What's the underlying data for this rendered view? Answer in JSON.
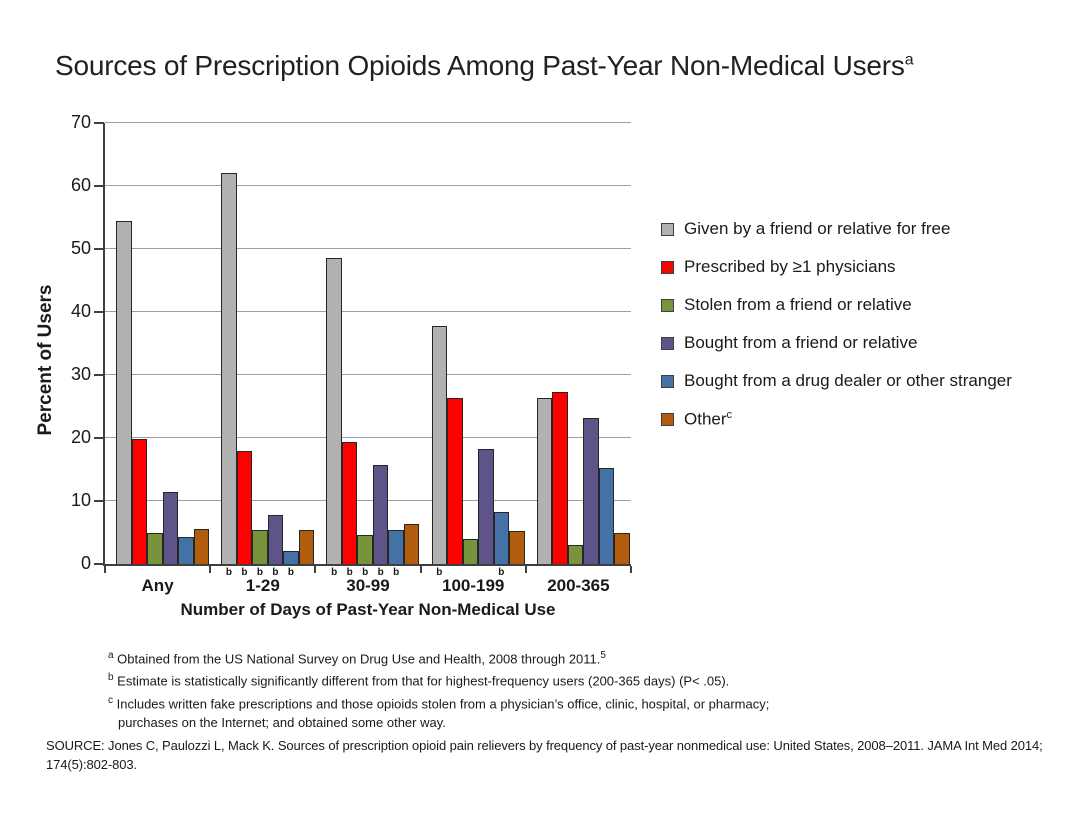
{
  "chart_data": {
    "type": "bar",
    "title": "Sources of Prescription Opioids Among Past-Year Non-Medical Users",
    "title_superscript": "a",
    "xlabel": "Number of Days of Past-Year Non-Medical Use",
    "ylabel": "Percent of Users",
    "ylim": [
      0,
      70
    ],
    "yticks": [
      0,
      10,
      20,
      30,
      40,
      50,
      60,
      70
    ],
    "grid": true,
    "legend_position": "right-of-plot",
    "categories": [
      "Any",
      "1-29",
      "30-99",
      "100-199",
      "200-365"
    ],
    "series": [
      {
        "name": "Given by a friend or relative for free",
        "slug": "given-free",
        "color": "#B1B1B1",
        "values": [
          54.5,
          62.0,
          48.5,
          37.8,
          26.3
        ]
      },
      {
        "name": "Prescribed by ≥1 physicians",
        "slug": "prescribed",
        "color": "#FE0000",
        "values": [
          19.8,
          18.0,
          19.4,
          26.4,
          27.3
        ]
      },
      {
        "name": "Stolen from a friend or relative",
        "slug": "stolen-friend",
        "color": "#77933C",
        "values": [
          4.9,
          5.4,
          4.6,
          4.0,
          3.0
        ]
      },
      {
        "name": "Bought from a friend or relative",
        "slug": "bought-friend",
        "color": "#5F5488",
        "values": [
          11.4,
          7.8,
          15.7,
          18.3,
          23.2
        ]
      },
      {
        "name": "Bought from a drug dealer or other stranger",
        "slug": "bought-dealer",
        "color": "#4472A6",
        "values": [
          4.3,
          2.1,
          5.4,
          8.2,
          15.2
        ]
      },
      {
        "name": "Other",
        "name_superscript": "c",
        "slug": "other",
        "color": "#B25C0E",
        "values": [
          5.5,
          5.4,
          6.3,
          5.3,
          5.0
        ]
      }
    ],
    "significance_marker": "b",
    "significance": [
      {
        "category": "1-29",
        "series_indexes": [
          0,
          1,
          2,
          3,
          4
        ]
      },
      {
        "category": "30-99",
        "series_indexes": [
          0,
          1,
          2,
          3,
          4
        ]
      },
      {
        "category": "100-199",
        "series_indexes": [
          0,
          4
        ]
      }
    ],
    "colors": {
      "axis": "#3F3F3F",
      "gridline": "#9F9F9F",
      "bar_border": "#262626",
      "text": "#1A1A1A"
    }
  },
  "footnotes": [
    {
      "marker": "a",
      "text": "Obtained from the US National Survey on Drug Use and Health, 2008 through 2011.",
      "end_superscript": "5"
    },
    {
      "marker": "b",
      "text": "Estimate is statistically significantly different from that for highest-frequency users (200-365 days) (P< .05)."
    },
    {
      "marker": "c",
      "text": "Includes written fake prescriptions and those opioids stolen from a physician’s office, clinic, hospital, or pharmacy; purchases on the Internet; and obtained some other way."
    }
  ],
  "source": "SOURCE: Jones C, Paulozzi L, Mack K. Sources of prescription opioid pain relievers by frequency of past-year nonmedical use: United States, 2008–2011. JAMA Int Med 2014; 174(5):802-803."
}
